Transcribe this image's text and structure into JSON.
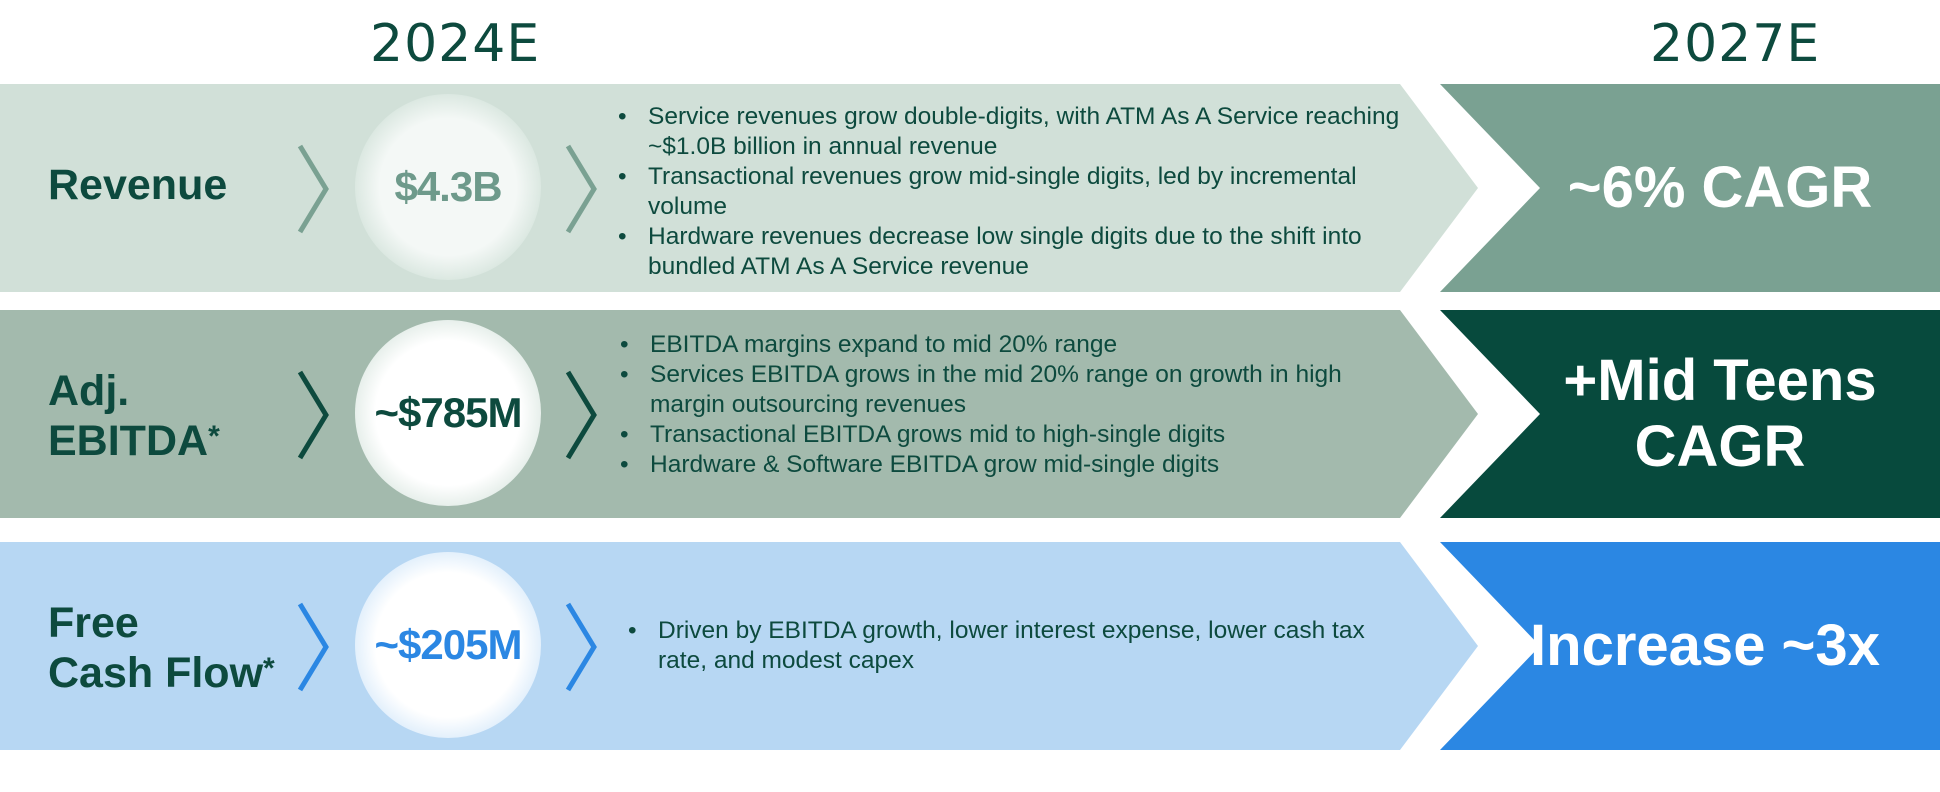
{
  "header": {
    "year_start": "2024E",
    "year_end": "2027E"
  },
  "rows": [
    {
      "label_line1": "Revenue",
      "label_line2": "",
      "asterisk": "",
      "value_2024": "$4.3B",
      "bullets": [
        "Service revenues grow double-digits, with ATM As A Service reaching ~$1.0B billion in annual revenue",
        "Transactional revenues grow mid-single digits, led by incremental volume",
        "Hardware revenues decrease low single digits due to the shift into bundled ATM As A Service revenue"
      ],
      "target_line1": "~6% CAGR",
      "target_line2": "",
      "colors": {
        "band": "#d1e0d8",
        "target": "#7aa192",
        "chevron": "#7aa192",
        "value_text": "#6e9a8b"
      }
    },
    {
      "label_line1": "Adj.",
      "label_line2": "EBITDA",
      "asterisk": "*",
      "value_2024": "~$785M",
      "bullets": [
        "EBITDA margins expand to mid 20% range",
        "Services EBITDA grows in the mid 20% range on growth in high margin outsourcing revenues",
        "Transactional EBITDA grows mid to high-single digits",
        "Hardware & Software EBITDA grow mid-single digits"
      ],
      "target_line1": "+Mid Teens",
      "target_line2": "CAGR",
      "colors": {
        "band": "#a3baad",
        "target": "#074a3d",
        "chevron": "#0d4a3e",
        "value_text": "#0d4a3e"
      }
    },
    {
      "label_line1": "Free",
      "label_line2": "Cash Flow",
      "asterisk": "*",
      "value_2024": "~$205M",
      "bullets": [
        "Driven by EBITDA growth, lower interest expense, lower cash tax rate, and modest capex"
      ],
      "target_line1": "Increase ~3x",
      "target_line2": "",
      "colors": {
        "band": "#b7d7f3",
        "target": "#2b87e3",
        "chevron": "#2b87e3",
        "value_text": "#2b87e3"
      }
    }
  ]
}
